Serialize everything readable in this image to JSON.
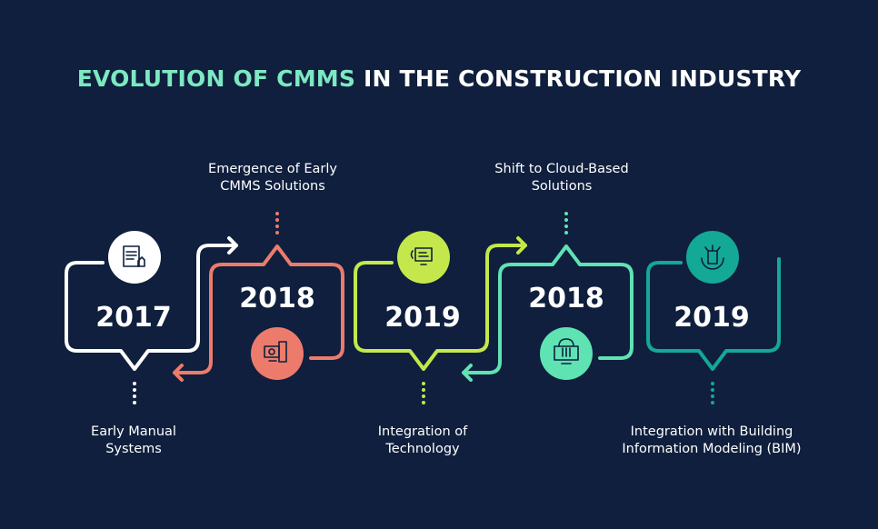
{
  "title": {
    "highlight": "EVOLUTION OF CMMS",
    "rest": " IN THE CONSTRUCTION INDUSTRY",
    "highlight_color": "#7de8c2"
  },
  "background_color": "#0f1f3d",
  "stages": [
    {
      "year": "2017",
      "label_line1": "Early Manual",
      "label_line2": "Systems",
      "color": "#ffffff",
      "icon": "document-hand-icon"
    },
    {
      "year": "2018",
      "label_line1": "Emergence of Early",
      "label_line2": "CMMS Solutions",
      "color": "#ec7b6c",
      "icon": "computer-gear-icon"
    },
    {
      "year": "2019",
      "label_line1": "Integration of",
      "label_line2": "Technology",
      "color": "#c4e84b",
      "icon": "monitor-circuit-icon"
    },
    {
      "year": "2018",
      "label_line1": "Shift to Cloud-Based",
      "label_line2": "Solutions",
      "color": "#5fe3b3",
      "icon": "cloud-monitor-icon"
    },
    {
      "year": "2019",
      "label_line1": "Integration with Building",
      "label_line2": "Information Modeling (BIM)",
      "color": "#14a896",
      "icon": "building-gear-icon"
    }
  ]
}
